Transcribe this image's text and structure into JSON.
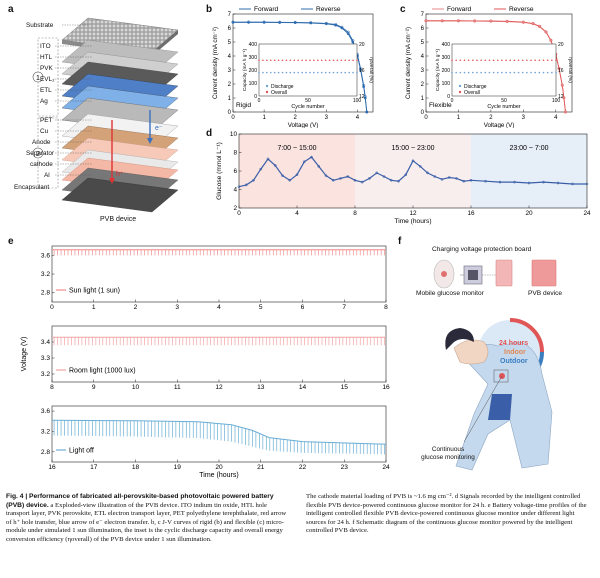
{
  "panels": [
    "a",
    "b",
    "c",
    "d",
    "e",
    "f"
  ],
  "panel_a": {
    "layers": [
      "Substrate",
      "ITO",
      "HTL",
      "PVK",
      "EVL₂",
      "ETL",
      "Ag",
      "PET",
      "Cu",
      "Anode",
      "Separator",
      "cathode",
      "Al",
      "Encapsulant"
    ],
    "group_labels": [
      "1",
      "2"
    ],
    "carrier_labels": [
      "e⁻",
      "h⁺"
    ],
    "device_label": "PVB device"
  },
  "panel_f": {
    "board_label": "Charging voltage protection board",
    "monitor_label": "Mobile glucose monitor",
    "device_label": "PVB device",
    "hours_label": "24 hours",
    "indoor_label": "Indoor",
    "outdoor_label": "Outdoor",
    "monitoring_label": "Continuous glucose monitoring"
  },
  "colors": {
    "forward": "#2f6db0",
    "reverse_rigid": "#2f6db0",
    "forward_flex": "#e88a8a",
    "reverse_flex": "#e05555",
    "discharge_rigid": "#6fa3d6",
    "overall_rigid": "#e05555",
    "glucose": "#3a5fa8",
    "sun": "#ef8c8c",
    "room": "#f2a3a3",
    "off": "#6aaed6"
  },
  "chart_data": [
    {
      "id": "b",
      "type": "line",
      "xlabel": "Voltage (V)",
      "ylabel": "Current density (mA cm⁻²)",
      "xlim": [
        0,
        4.5
      ],
      "ylim": [
        0,
        7
      ],
      "xticks": [
        0,
        1,
        2,
        3,
        4
      ],
      "yticks": [
        0,
        1,
        2,
        3,
        4,
        5,
        6,
        7
      ],
      "legend": [
        "Forward",
        "Reverse"
      ],
      "tag": "Rigid",
      "series": [
        {
          "name": "Forward",
          "x": [
            0,
            0.5,
            1,
            1.5,
            2,
            2.5,
            3,
            3.3,
            3.5,
            3.7,
            3.85,
            4.0,
            4.1,
            4.2,
            4.25,
            4.3
          ],
          "values": [
            6.4,
            6.4,
            6.4,
            6.39,
            6.38,
            6.36,
            6.3,
            6.2,
            6.0,
            5.6,
            5.0,
            4.0,
            3.0,
            1.8,
            1.0,
            0
          ]
        },
        {
          "name": "Reverse",
          "x": [
            0,
            0.5,
            1,
            1.5,
            2,
            2.5,
            3,
            3.3,
            3.5,
            3.7,
            3.85,
            4.0,
            4.1,
            4.2,
            4.25,
            4.3
          ],
          "values": [
            6.42,
            6.42,
            6.42,
            6.41,
            6.4,
            6.38,
            6.33,
            6.25,
            6.05,
            5.7,
            5.1,
            4.1,
            3.1,
            1.9,
            1.1,
            0
          ]
        }
      ],
      "inset": {
        "xlabel": "Cycle number",
        "ylabel_left": "Capacity (mA h g⁻¹)",
        "ylabel_right": "ηoverall (%)",
        "xlim": [
          0,
          100
        ],
        "xticks": [
          0,
          50,
          100
        ],
        "yleft_ticks": [
          0,
          100,
          200,
          300,
          400
        ],
        "yright_ticks": [
          12,
          16,
          20
        ],
        "legend": [
          "Discharge",
          "Overall"
        ],
        "discharge_value": 180,
        "overall_value": 17.5
      }
    },
    {
      "id": "c",
      "type": "line",
      "xlabel": "Voltage (V)",
      "ylabel": "Current density (mA cm⁻²)",
      "xlim": [
        0,
        4.5
      ],
      "ylim": [
        0,
        7
      ],
      "xticks": [
        0,
        1,
        2,
        3,
        4
      ],
      "yticks": [
        0,
        1,
        2,
        3,
        4,
        5,
        6,
        7
      ],
      "legend": [
        "Forward",
        "Reverse"
      ],
      "tag": "Flexible",
      "series": [
        {
          "name": "Forward",
          "x": [
            0,
            0.5,
            1,
            1.5,
            2,
            2.5,
            3,
            3.3,
            3.5,
            3.7,
            3.85,
            4.0,
            4.1,
            4.2,
            4.25,
            4.3
          ],
          "values": [
            6.5,
            6.5,
            6.5,
            6.49,
            6.48,
            6.46,
            6.4,
            6.3,
            6.1,
            5.7,
            5.1,
            4.1,
            3.1,
            1.9,
            1.0,
            0
          ]
        },
        {
          "name": "Reverse",
          "x": [
            0,
            0.5,
            1,
            1.5,
            2,
            2.5,
            3,
            3.3,
            3.5,
            3.7,
            3.85,
            4.0,
            4.1,
            4.2,
            4.25,
            4.3
          ],
          "values": [
            6.52,
            6.52,
            6.52,
            6.51,
            6.5,
            6.48,
            6.42,
            6.32,
            6.12,
            5.72,
            5.12,
            4.12,
            3.12,
            1.92,
            1.02,
            0
          ]
        }
      ],
      "inset": {
        "xlabel": "Cycle number",
        "ylabel_left": "Capacity (mA h g⁻¹)",
        "ylabel_right": "ηoverall (%)",
        "xlim": [
          0,
          100
        ],
        "xticks": [
          0,
          50,
          100
        ],
        "yleft_ticks": [
          0,
          100,
          200,
          300,
          400
        ],
        "yright_ticks": [
          12,
          16,
          20
        ],
        "legend": [
          "Discharge",
          "Overall"
        ],
        "discharge_value": 180,
        "overall_value": 17.5
      }
    },
    {
      "id": "d",
      "type": "line",
      "xlabel": "Time (hours)",
      "ylabel": "Glucose (mmol L⁻¹)",
      "xlim": [
        0,
        24
      ],
      "ylim": [
        2,
        10
      ],
      "xticks": [
        0,
        4,
        8,
        12,
        16,
        20,
        24
      ],
      "yticks": [
        2,
        4,
        6,
        8,
        10
      ],
      "periods": [
        "7:00 ~ 15:00",
        "15:00 ~ 23:00",
        "23:00 ~ 7:00"
      ],
      "series": [
        {
          "name": "Glucose",
          "x": [
            0,
            0.5,
            1,
            1.5,
            2,
            2.5,
            3,
            3.5,
            4,
            4.5,
            5,
            5.5,
            6,
            6.5,
            7,
            7.5,
            8,
            8.5,
            9,
            9.5,
            10,
            10.5,
            11,
            11.5,
            12,
            12.5,
            13,
            13.5,
            14,
            14.5,
            15,
            15.5,
            16,
            17,
            18,
            19,
            20,
            21,
            22,
            23,
            24
          ],
          "values": [
            4.3,
            4.5,
            5.0,
            6.2,
            7.3,
            6.6,
            5.5,
            5.0,
            5.6,
            7.0,
            7.5,
            6.5,
            5.5,
            5.0,
            5.2,
            5.4,
            5.0,
            4.8,
            5.2,
            5.8,
            5.4,
            5.0,
            4.9,
            5.6,
            7.1,
            6.5,
            5.8,
            5.4,
            5.1,
            5.3,
            5.2,
            4.9,
            5.0,
            4.9,
            4.8,
            4.8,
            4.7,
            4.8,
            4.7,
            4.6,
            4.6
          ]
        }
      ]
    },
    {
      "id": "e1",
      "type": "line",
      "xlim": [
        0,
        8
      ],
      "ylim": [
        2.6,
        3.8
      ],
      "xticks": [
        0,
        1,
        2,
        3,
        4,
        5,
        6,
        7,
        8
      ],
      "yticks": [
        2.8,
        3.2,
        3.6
      ],
      "legend": [
        "Sun light (1 sun)"
      ],
      "band": {
        "low": 3.6,
        "high": 3.72
      }
    },
    {
      "id": "e2",
      "type": "line",
      "ylabel": "Voltage (V)",
      "xlim": [
        8,
        16
      ],
      "ylim": [
        3.15,
        3.5
      ],
      "xticks": [
        8,
        9,
        10,
        11,
        12,
        13,
        14,
        15,
        16
      ],
      "yticks": [
        3.2,
        3.3,
        3.4
      ],
      "legend": [
        "Room light (1000 lux)"
      ],
      "band": {
        "low": 3.38,
        "high": 3.43
      }
    },
    {
      "id": "e3",
      "type": "line",
      "xlabel": "Time (hours)",
      "xlim": [
        16,
        24
      ],
      "ylim": [
        2.6,
        3.7
      ],
      "xticks": [
        16,
        17,
        18,
        19,
        20,
        21,
        22,
        23,
        24
      ],
      "yticks": [
        2.8,
        3.2,
        3.6
      ],
      "legend": [
        "Light off"
      ],
      "band_points": {
        "x": [
          16,
          18,
          19.5,
          20.3,
          20.8,
          21.2,
          22,
          24
        ],
        "high": [
          3.42,
          3.41,
          3.39,
          3.33,
          3.22,
          3.08,
          3.0,
          2.95
        ],
        "low": [
          3.12,
          3.1,
          3.07,
          3.0,
          2.9,
          2.82,
          2.78,
          2.75
        ]
      }
    }
  ],
  "caption": {
    "left": {
      "title": "Fig. 4 | Performance of fabricated all-perovskite-based photovoltaic powered battery (PVB) device.",
      "body": " a Exploded-view illustration of the PVB device. ITO indium tin oxide, HTL hole transport layer, PVK perovskite, ETL electron transport layer, PET polyethylene terephthalate, red arrow of h⁺ hole transfer, blue arrow of e⁻ electron transfer. b, c J-V curves of rigid (b) and flexible (c) micro-module under simulated 1 sun illumination, the inset is the cyclic discharge capacity and overall energy conversion efficiency (ηoverall) of the PVB device under 1 sun illumination."
    },
    "right": {
      "body": "The cathode material loading of PVB is ~1.6 mg cm⁻². d Signals recorded by the intelligent controlled flexible PVB device-powered continuous glucose monitor for 24 h. e Battery voltage-time profiles of the intelligent controlled flexible PVB device-powered continuous glucose monitor under different light sources for 24 h. f Schematic diagram of the continuous glucose monitor powered by the intelligent controlled PVB device."
    }
  }
}
